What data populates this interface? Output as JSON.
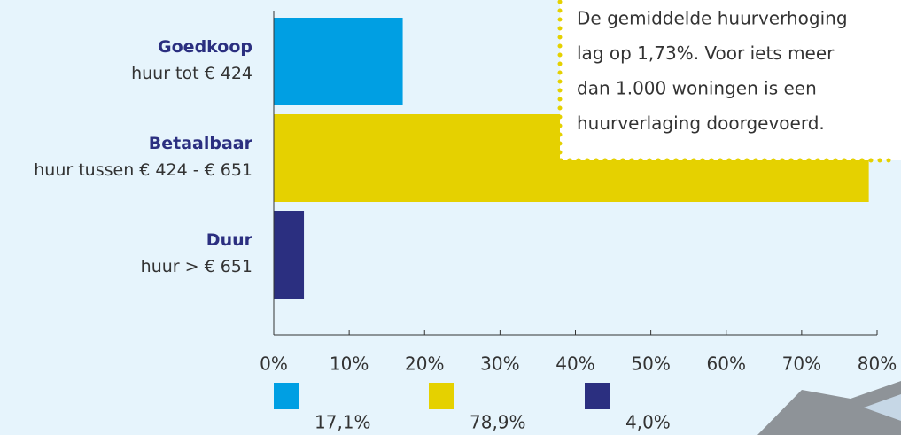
{
  "chart_data": {
    "type": "bar",
    "orientation": "horizontal",
    "categories": [
      "Goedkoop",
      "Betaalbaar",
      "Duur"
    ],
    "category_descriptions": [
      "huur tot € 424",
      "huur tussen € 424 - € 651",
      "huur > € 651"
    ],
    "values": [
      17.1,
      78.9,
      4.0
    ],
    "value_labels": [
      "17,1%",
      "78,9%",
      "4,0%"
    ],
    "colors": [
      "#009fe3",
      "#e5d100",
      "#2b2f80"
    ],
    "xlim": [
      0,
      80
    ],
    "xticks": [
      {
        "value": 0,
        "label": "0%"
      },
      {
        "value": 10,
        "label": "10%"
      },
      {
        "value": 20,
        "label": "20%"
      },
      {
        "value": 30,
        "label": "30%"
      },
      {
        "value": 40,
        "label": "40%"
      },
      {
        "value": 50,
        "label": "50%"
      },
      {
        "value": 60,
        "label": "60%"
      },
      {
        "value": 70,
        "label": "70%"
      },
      {
        "value": 80,
        "label": "80%"
      }
    ],
    "annotation": [
      "De gemiddelde huurverhoging",
      "lag op 1,73%. Voor iets meer",
      "dan 1.000 woningen is een",
      "huurverlaging doorgevoerd."
    ]
  }
}
